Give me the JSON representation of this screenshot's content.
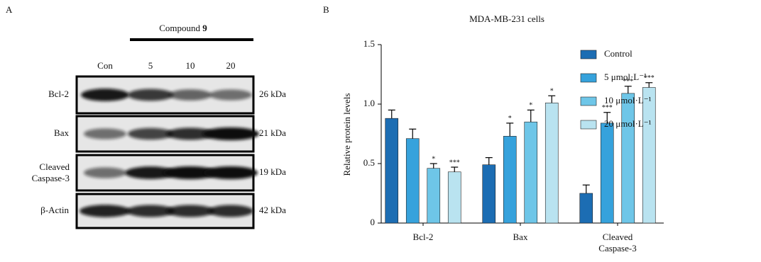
{
  "panel_a": {
    "label": "A",
    "compound_label": "Compound",
    "compound_number": "9",
    "lanes": [
      "Con",
      "5",
      "10",
      "20"
    ],
    "rows": [
      {
        "protein": "Bcl-2",
        "size": "26 kDa"
      },
      {
        "protein": "Bax",
        "size": "21 kDa"
      },
      {
        "protein": "Cleaved Caspase-3",
        "size": "19 kDa"
      },
      {
        "protein": "β-Actin",
        "size": "42 kDa"
      }
    ]
  },
  "chart_data": {
    "type": "bar",
    "panel_label": "B",
    "title": "MDA-MB-231 cells",
    "y_label": "Relative protein levels",
    "categories": [
      "Bcl-2",
      "Bax",
      "Cleaved Caspase-3"
    ],
    "ylim": [
      0,
      1.5
    ],
    "yticks": [
      0,
      0.5,
      {
        "value": 1,
        "label": "1.0"
      },
      1.5
    ],
    "legend_position": "right",
    "series": [
      {
        "name": "Control",
        "color": "#1c6db3",
        "values": [
          0.88,
          0.49,
          0.25
        ],
        "errors": [
          0.07,
          0.06,
          0.07
        ],
        "annotations": [
          null,
          null,
          null
        ]
      },
      {
        "name": "5 μmol·L⁻¹",
        "color": "#36a2dc",
        "values": [
          0.71,
          0.73,
          0.84
        ],
        "errors": [
          0.08,
          0.11,
          0.09
        ],
        "annotations": [
          null,
          "*",
          "***"
        ]
      },
      {
        "name": "10 μmol·L⁻¹",
        "color": "#6ec6e8",
        "values": [
          0.46,
          0.85,
          1.09
        ],
        "errors": [
          0.04,
          0.1,
          0.06
        ],
        "annotations": [
          "*",
          "*",
          "***"
        ]
      },
      {
        "name": "20 μmol·L⁻¹",
        "color": "#b9e3f0",
        "values": [
          0.43,
          1.01,
          1.14
        ],
        "errors": [
          0.04,
          0.06,
          0.04
        ],
        "annotations": [
          "***",
          "*",
          "***"
        ]
      }
    ]
  }
}
